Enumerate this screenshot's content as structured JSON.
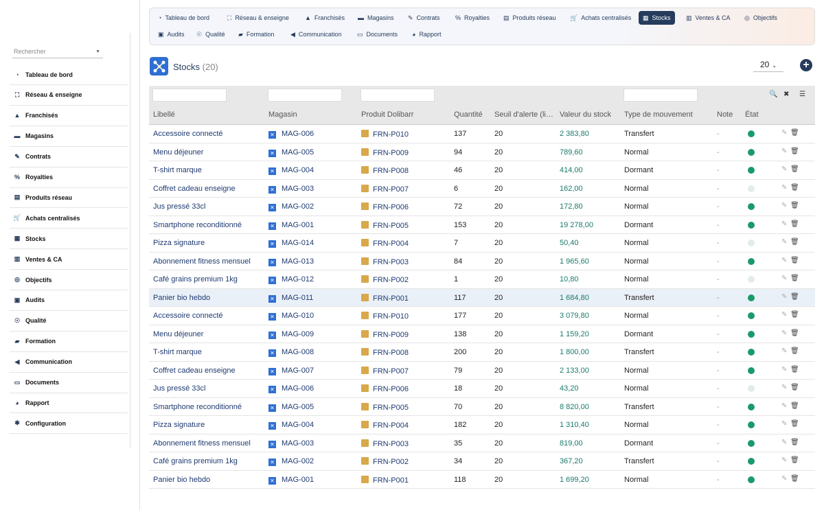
{
  "sidebar": {
    "search_placeholder": "Rechercher",
    "items": [
      {
        "label": "Tableau de bord",
        "icon": "dashboard-icon"
      },
      {
        "label": "Réseau & enseigne",
        "icon": "network-icon"
      },
      {
        "label": "Franchisés",
        "icon": "user-icon"
      },
      {
        "label": "Magasins",
        "icon": "store-icon"
      },
      {
        "label": "Contrats",
        "icon": "contract-icon"
      },
      {
        "label": "Royalties",
        "icon": "percent-icon"
      },
      {
        "label": "Produits réseau",
        "icon": "box-icon"
      },
      {
        "label": "Achats centralisés",
        "icon": "cart-icon"
      },
      {
        "label": "Stocks",
        "icon": "boxes-icon"
      },
      {
        "label": "Ventes & CA",
        "icon": "sales-icon"
      },
      {
        "label": "Objectifs",
        "icon": "target-icon"
      },
      {
        "label": "Audits",
        "icon": "clipboard-icon"
      },
      {
        "label": "Qualité",
        "icon": "award-icon"
      },
      {
        "label": "Formation",
        "icon": "graduation-icon"
      },
      {
        "label": "Communication",
        "icon": "megaphone-icon"
      },
      {
        "label": "Documents",
        "icon": "folder-icon"
      },
      {
        "label": "Rapport",
        "icon": "report-icon"
      },
      {
        "label": "Configuration",
        "icon": "gear-icon"
      }
    ]
  },
  "topnav": {
    "row1": [
      "Tableau de bord",
      "Réseau & enseigne",
      "Franchisés",
      "Magasins",
      "Contrats",
      "Royalties",
      "Produits réseau",
      "Achats centralisés",
      "Stocks",
      "Ventes & CA",
      "Objectifs"
    ],
    "row2": [
      "Audits",
      "Qualité",
      "Formation",
      "Communication",
      "Documents",
      "Rapport"
    ],
    "active": "Stocks"
  },
  "page": {
    "title": "Stocks",
    "count": "(20)",
    "per_page": "20"
  },
  "table": {
    "columns": [
      "Libellé",
      "Magasin",
      "Produit Dolibarr",
      "Quantité",
      "Seuil d'alerte (li…",
      "Valeur du stock",
      "Type de mouvement",
      "Note",
      "État"
    ],
    "rows": [
      {
        "label": "Accessoire connecté",
        "store": "MAG-006",
        "product": "FRN-P010",
        "qty": "137",
        "threshold": "20",
        "value": "2 383,80",
        "movement": "Transfert",
        "note": "-",
        "status": "on"
      },
      {
        "label": "Menu déjeuner",
        "store": "MAG-005",
        "product": "FRN-P009",
        "qty": "94",
        "threshold": "20",
        "value": "789,60",
        "movement": "Normal",
        "note": "-",
        "status": "on"
      },
      {
        "label": "T-shirt marque",
        "store": "MAG-004",
        "product": "FRN-P008",
        "qty": "46",
        "threshold": "20",
        "value": "414,00",
        "movement": "Dormant",
        "note": "-",
        "status": "on"
      },
      {
        "label": "Coffret cadeau enseigne",
        "store": "MAG-003",
        "product": "FRN-P007",
        "qty": "6",
        "threshold": "20",
        "value": "162,00",
        "movement": "Normal",
        "note": "-",
        "status": "off"
      },
      {
        "label": "Jus pressé 33cl",
        "store": "MAG-002",
        "product": "FRN-P006",
        "qty": "72",
        "threshold": "20",
        "value": "172,80",
        "movement": "Normal",
        "note": "-",
        "status": "on"
      },
      {
        "label": "Smartphone reconditionné",
        "store": "MAG-001",
        "product": "FRN-P005",
        "qty": "153",
        "threshold": "20",
        "value": "19 278,00",
        "movement": "Dormant",
        "note": "-",
        "status": "on"
      },
      {
        "label": "Pizza signature",
        "store": "MAG-014",
        "product": "FRN-P004",
        "qty": "7",
        "threshold": "20",
        "value": "50,40",
        "movement": "Normal",
        "note": "-",
        "status": "off"
      },
      {
        "label": "Abonnement fitness mensuel",
        "store": "MAG-013",
        "product": "FRN-P003",
        "qty": "84",
        "threshold": "20",
        "value": "1 965,60",
        "movement": "Normal",
        "note": "-",
        "status": "on"
      },
      {
        "label": "Café grains premium 1kg",
        "store": "MAG-012",
        "product": "FRN-P002",
        "qty": "1",
        "threshold": "20",
        "value": "10,80",
        "movement": "Normal",
        "note": "-",
        "status": "off"
      },
      {
        "label": "Panier bio hebdo",
        "store": "MAG-011",
        "product": "FRN-P001",
        "qty": "117",
        "threshold": "20",
        "value": "1 684,80",
        "movement": "Transfert",
        "note": "-",
        "status": "on"
      },
      {
        "label": "Accessoire connecté",
        "store": "MAG-010",
        "product": "FRN-P010",
        "qty": "177",
        "threshold": "20",
        "value": "3 079,80",
        "movement": "Normal",
        "note": "-",
        "status": "on"
      },
      {
        "label": "Menu déjeuner",
        "store": "MAG-009",
        "product": "FRN-P009",
        "qty": "138",
        "threshold": "20",
        "value": "1 159,20",
        "movement": "Dormant",
        "note": "-",
        "status": "on"
      },
      {
        "label": "T-shirt marque",
        "store": "MAG-008",
        "product": "FRN-P008",
        "qty": "200",
        "threshold": "20",
        "value": "1 800,00",
        "movement": "Transfert",
        "note": "-",
        "status": "on"
      },
      {
        "label": "Coffret cadeau enseigne",
        "store": "MAG-007",
        "product": "FRN-P007",
        "qty": "79",
        "threshold": "20",
        "value": "2 133,00",
        "movement": "Normal",
        "note": "-",
        "status": "on"
      },
      {
        "label": "Jus pressé 33cl",
        "store": "MAG-006",
        "product": "FRN-P006",
        "qty": "18",
        "threshold": "20",
        "value": "43,20",
        "movement": "Normal",
        "note": "-",
        "status": "off"
      },
      {
        "label": "Smartphone reconditionné",
        "store": "MAG-005",
        "product": "FRN-P005",
        "qty": "70",
        "threshold": "20",
        "value": "8 820,00",
        "movement": "Transfert",
        "note": "-",
        "status": "on"
      },
      {
        "label": "Pizza signature",
        "store": "MAG-004",
        "product": "FRN-P004",
        "qty": "182",
        "threshold": "20",
        "value": "1 310,40",
        "movement": "Normal",
        "note": "-",
        "status": "on"
      },
      {
        "label": "Abonnement fitness mensuel",
        "store": "MAG-003",
        "product": "FRN-P003",
        "qty": "35",
        "threshold": "20",
        "value": "819,00",
        "movement": "Dormant",
        "note": "-",
        "status": "on"
      },
      {
        "label": "Café grains premium 1kg",
        "store": "MAG-002",
        "product": "FRN-P002",
        "qty": "34",
        "threshold": "20",
        "value": "367,20",
        "movement": "Transfert",
        "note": "-",
        "status": "on"
      },
      {
        "label": "Panier bio hebdo",
        "store": "MAG-001",
        "product": "FRN-P001",
        "qty": "118",
        "threshold": "20",
        "value": "1 699,20",
        "movement": "Normal",
        "note": "-",
        "status": "on"
      }
    ],
    "highlighted_row": 9
  },
  "colors": {
    "accent": "#263c5c",
    "status_on": "#1a9a6a",
    "status_off": "#e2ece8",
    "money": "#1a7a6a"
  }
}
